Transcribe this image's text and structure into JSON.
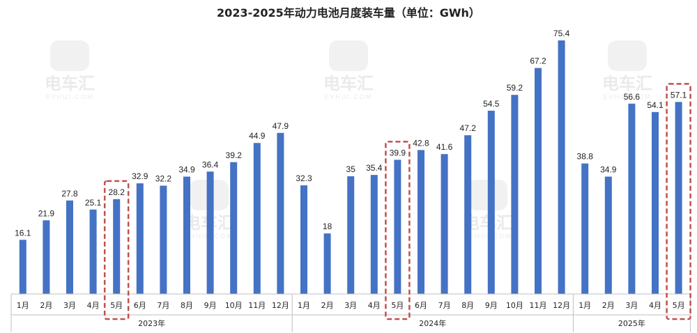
{
  "chart_data": {
    "type": "bar",
    "title": "2023-2025年动力电池月度装车量（单位：GWh）",
    "groups": [
      {
        "year": "2023年",
        "categories": [
          "1月",
          "2月",
          "3月",
          "4月",
          "5月",
          "6月",
          "7月",
          "8月",
          "9月",
          "10月",
          "11月",
          "12月"
        ],
        "values": [
          16.1,
          21.9,
          27.8,
          25.1,
          28.2,
          32.9,
          32.2,
          34.9,
          36.4,
          39.2,
          44.9,
          47.9
        ]
      },
      {
        "year": "2024年",
        "categories": [
          "1月",
          "2月",
          "3月",
          "4月",
          "5月",
          "6月",
          "7月",
          "8月",
          "9月",
          "10月",
          "11月",
          "12月"
        ],
        "values": [
          32.3,
          18,
          35,
          35.4,
          39.9,
          42.8,
          41.6,
          47.2,
          54.5,
          59.2,
          67.2,
          75.4
        ]
      },
      {
        "year": "2025年",
        "categories": [
          "1月",
          "2月",
          "3月",
          "4月",
          "5月"
        ],
        "values": [
          38.8,
          34.9,
          56.6,
          54.1,
          57.1
        ]
      }
    ],
    "highlighted": [
      {
        "group": 0,
        "index": 4
      },
      {
        "group": 1,
        "index": 4
      },
      {
        "group": 2,
        "index": 4
      }
    ],
    "bar_color": "#4472c4",
    "highlight_color": "#c0504d",
    "grid": false,
    "ylim": [
      0,
      80
    ]
  },
  "watermark": {
    "text": "电车汇",
    "sub": "EVHUI.COM"
  }
}
